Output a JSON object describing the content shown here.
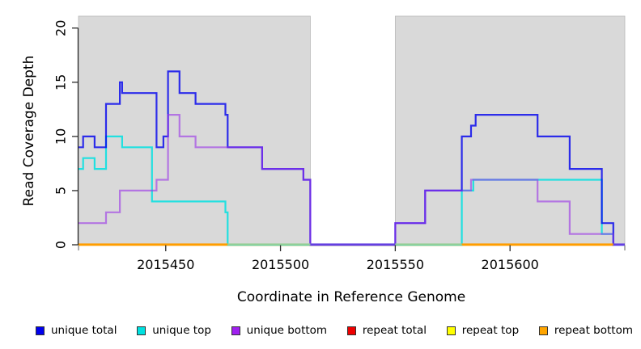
{
  "figure": {
    "background": "#ffffff",
    "panel_bg": "#d9d9d9",
    "panel_edge": "#b9b9b9",
    "axis_color": "#2b2b2b",
    "tick_label_color": "#000000"
  },
  "chart_data": {
    "type": "line",
    "subtype": "step-coverage",
    "title": "",
    "xlabel": "Coordinate in Reference Genome",
    "ylabel": "Read Coverage Depth",
    "xlim": [
      2015412,
      2015650
    ],
    "ylim": [
      0,
      21.1
    ],
    "x_ticks": [
      {
        "value": 2015450,
        "label": "2015450"
      },
      {
        "value": 2015500,
        "label": "2015500"
      },
      {
        "value": 2015550,
        "label": "2015550"
      },
      {
        "value": 2015600,
        "label": "2015600"
      }
    ],
    "x_minor_ticks": [
      2015412,
      2015650
    ],
    "y_ticks": [
      {
        "value": 0,
        "label": "0"
      },
      {
        "value": 5,
        "label": "5"
      },
      {
        "value": 10,
        "label": "10"
      },
      {
        "value": 15,
        "label": "15"
      },
      {
        "value": 20,
        "label": "20"
      }
    ],
    "coverage_regions": [
      [
        2015412,
        2015513
      ],
      [
        2015550,
        2015650
      ]
    ],
    "gap_region": [
      2015513,
      2015550
    ],
    "series": [
      {
        "name": "repeat total",
        "color": "#ee0000",
        "opacity": 1,
        "steps": [
          [
            2015412,
            0
          ],
          [
            2015645,
            0
          ]
        ]
      },
      {
        "name": "repeat top",
        "color": "#ffff00",
        "opacity": 1,
        "steps": [
          [
            2015412,
            0
          ],
          [
            2015645,
            0
          ]
        ]
      },
      {
        "name": "repeat bottom",
        "color": "#ffa500",
        "opacity": 1,
        "steps": [
          [
            2015412,
            0
          ],
          [
            2015645,
            0
          ]
        ]
      },
      {
        "name": "unique top",
        "color": "#00e0e0",
        "opacity": 0.85,
        "steps": [
          [
            2015412,
            7
          ],
          [
            2015414,
            8
          ],
          [
            2015419,
            7
          ],
          [
            2015424,
            10
          ],
          [
            2015431,
            9
          ],
          [
            2015444,
            4
          ],
          [
            2015476,
            3
          ],
          [
            2015477,
            0
          ],
          [
            2015579,
            5
          ],
          [
            2015584,
            6
          ],
          [
            2015640,
            1
          ],
          [
            2015645,
            0
          ],
          [
            2015650,
            0
          ]
        ]
      },
      {
        "name": "unique total",
        "color": "#0000ee",
        "opacity": 0.8,
        "steps": [
          [
            2015412,
            9
          ],
          [
            2015414,
            10
          ],
          [
            2015419,
            9
          ],
          [
            2015424,
            13
          ],
          [
            2015430,
            15
          ],
          [
            2015431,
            14
          ],
          [
            2015446,
            9
          ],
          [
            2015449,
            10
          ],
          [
            2015451,
            16
          ],
          [
            2015456,
            14
          ],
          [
            2015463,
            13
          ],
          [
            2015476,
            12
          ],
          [
            2015477,
            9
          ],
          [
            2015492,
            7
          ],
          [
            2015510,
            6
          ],
          [
            2015513,
            0
          ],
          [
            2015550,
            2
          ],
          [
            2015563,
            5
          ],
          [
            2015579,
            10
          ],
          [
            2015583,
            11
          ],
          [
            2015585,
            12
          ],
          [
            2015612,
            10
          ],
          [
            2015626,
            7
          ],
          [
            2015640,
            2
          ],
          [
            2015645,
            0
          ],
          [
            2015650,
            0
          ]
        ]
      },
      {
        "name": "unique bottom",
        "color": "#9932e8",
        "opacity": 0.6,
        "steps": [
          [
            2015412,
            2
          ],
          [
            2015424,
            3
          ],
          [
            2015430,
            5
          ],
          [
            2015446,
            6
          ],
          [
            2015451,
            12
          ],
          [
            2015456,
            10
          ],
          [
            2015463,
            9
          ],
          [
            2015492,
            7
          ],
          [
            2015510,
            6
          ],
          [
            2015513,
            0
          ],
          [
            2015550,
            2
          ],
          [
            2015563,
            5
          ],
          [
            2015583,
            6
          ],
          [
            2015612,
            4
          ],
          [
            2015626,
            1
          ],
          [
            2015645,
            0
          ],
          [
            2015650,
            0
          ]
        ]
      }
    ],
    "baseline_segments": [
      {
        "from": 2015412,
        "to": 2015477,
        "color": "#ff9d00"
      },
      {
        "from": 2015477,
        "to": 2015513,
        "color": "#96cf96"
      },
      {
        "from": 2015513,
        "to": 2015550,
        "color": "#6440e0"
      },
      {
        "from": 2015550,
        "to": 2015579,
        "color": "#96cf96"
      },
      {
        "from": 2015579,
        "to": 2015645,
        "color": "#ff9d00"
      },
      {
        "from": 2015645,
        "to": 2015650,
        "color": "#6440e0"
      }
    ],
    "legend": [
      {
        "label": "unique total",
        "color": "#0000ee"
      },
      {
        "label": "unique top",
        "color": "#00e0e0"
      },
      {
        "label": "unique bottom",
        "color": "#a020f0"
      },
      {
        "label": "repeat total",
        "color": "#ee0000"
      },
      {
        "label": "repeat top",
        "color": "#ffff00"
      },
      {
        "label": "repeat bottom",
        "color": "#ffa500"
      }
    ],
    "legend_position": "bottom"
  }
}
